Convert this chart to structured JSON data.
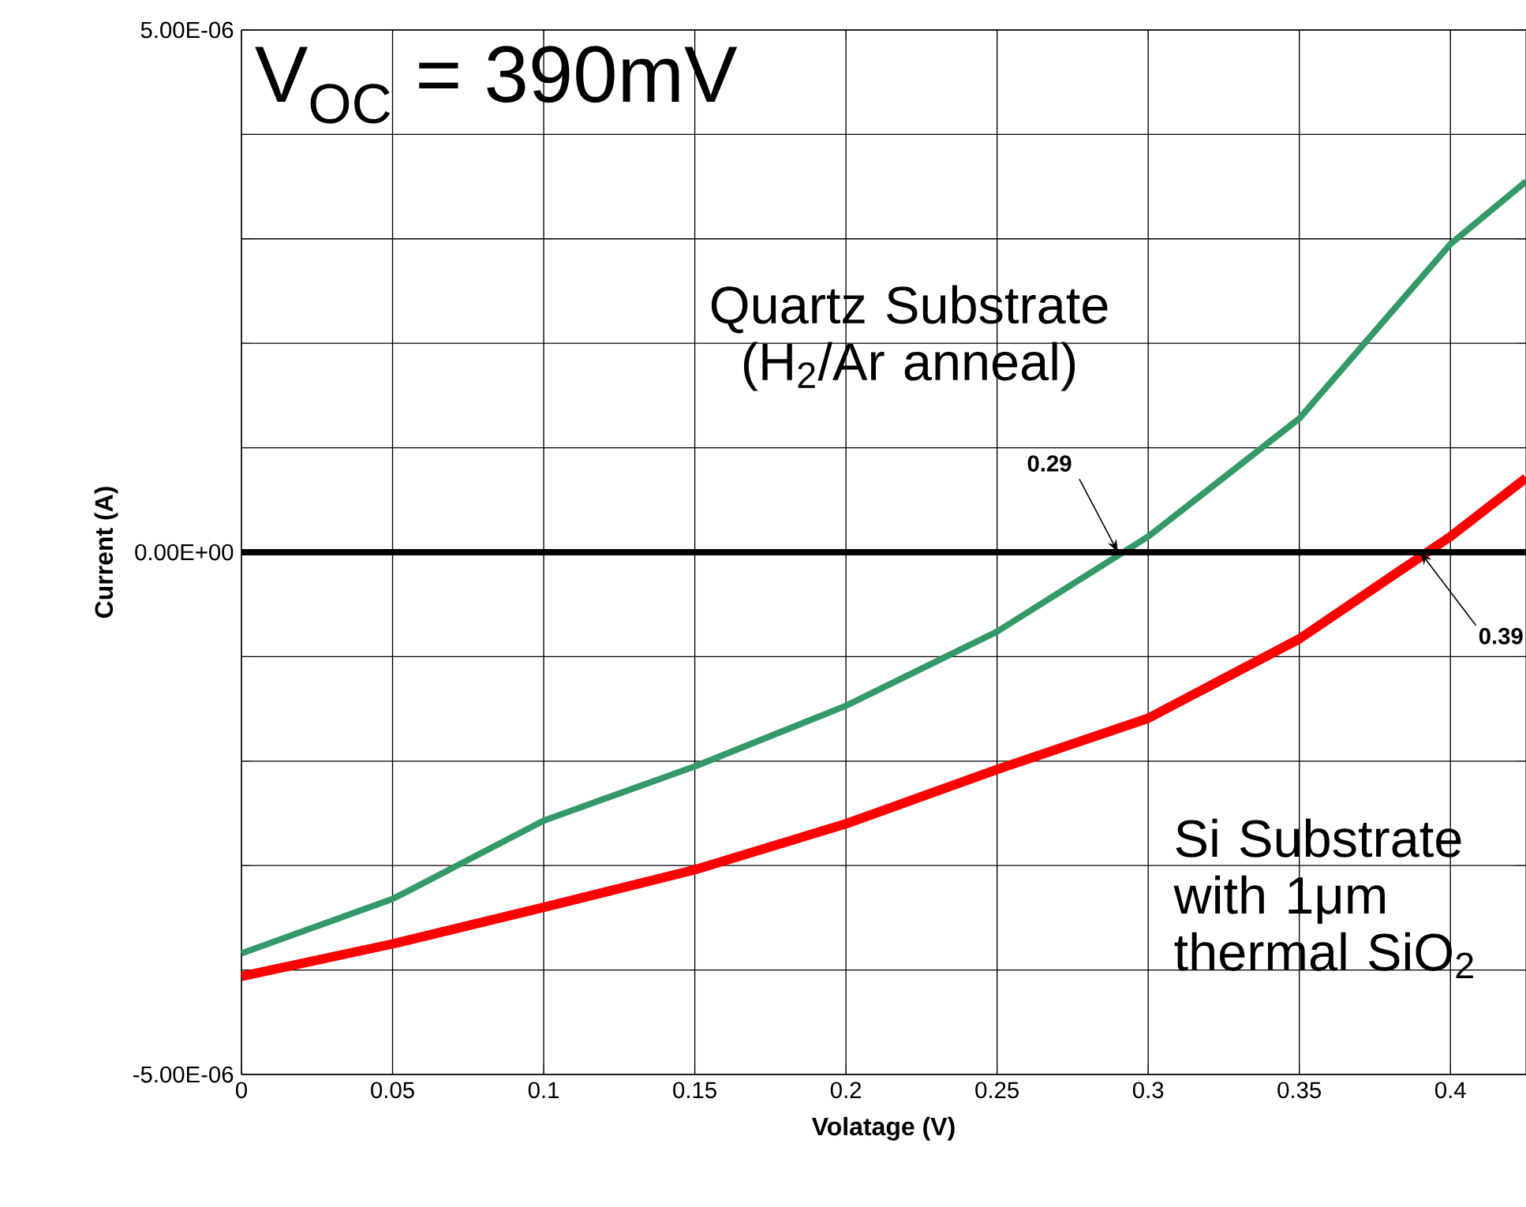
{
  "chart_data": {
    "type": "line",
    "xlabel": "Volatage (V)",
    "ylabel": "Current (A)",
    "xlim": [
      0,
      0.425
    ],
    "xticks": [
      0,
      0.05,
      0.1,
      0.15,
      0.2,
      0.25,
      0.3,
      0.35,
      0.4
    ],
    "ylim": [
      -5e-06,
      5e-06
    ],
    "yticks": [
      {
        "value": -5e-06,
        "label": "-5.00E-06"
      },
      {
        "value": -4e-06,
        "label": null
      },
      {
        "value": -3e-06,
        "label": null
      },
      {
        "value": -2e-06,
        "label": null
      },
      {
        "value": -1e-06,
        "label": null
      },
      {
        "value": 0,
        "label": "0.00E+00"
      },
      {
        "value": 1e-06,
        "label": null
      },
      {
        "value": 2e-06,
        "label": null
      },
      {
        "value": 3e-06,
        "label": null
      },
      {
        "value": 4e-06,
        "label": null
      },
      {
        "value": 5e-06,
        "label": "5.00E-06"
      }
    ],
    "grid": true,
    "x": [
      0,
      0.05,
      0.1,
      0.15,
      0.2,
      0.25,
      0.3,
      0.35,
      0.4,
      0.425
    ],
    "series": [
      {
        "name": "Quartz Substrate (H$_{2}$/Ar anneal)",
        "color": "#339966",
        "values": [
          -3.84e-06,
          -3.32e-06,
          -2.57e-06,
          -2.05e-06,
          -1.47e-06,
          -7.6e-07,
          1.5e-07,
          1.28e-06,
          2.95e-06,
          3.55e-06
        ]
      },
      {
        "name": "Si Substrate with 1μm thermal SiO$_{2}$",
        "color": "#ff0000",
        "values": [
          -4.06e-06,
          -3.75e-06,
          -3.4e-06,
          -3.04e-06,
          -2.6e-06,
          -2.08e-06,
          -1.59e-06,
          -8.3e-07,
          1.5e-07,
          7.1e-07
        ]
      }
    ],
    "ref_lines": [
      {
        "axis": "y",
        "value": 0,
        "color": "#000000"
      }
    ],
    "annotations": [
      "V$_{OC}$ = 390mV",
      {
        "text": "0.29",
        "x": 0.29,
        "y": 0
      },
      {
        "text": "0.39",
        "x": 0.39,
        "y": 0
      }
    ]
  }
}
